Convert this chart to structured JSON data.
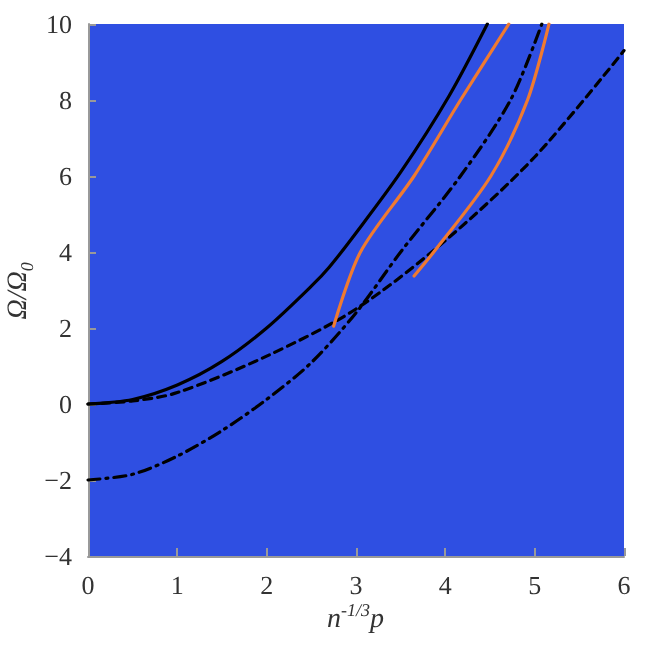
{
  "chart_data": {
    "type": "line",
    "xlabel": "n$^{-1/3}$p",
    "ylabel": "Ω/Ω$_{0}$",
    "xlim": [
      0,
      6
    ],
    "xticks": [
      0,
      1,
      2,
      3,
      4,
      5,
      6
    ],
    "ylim": [
      -4,
      10
    ],
    "yticks": [
      -4,
      -2,
      0,
      2,
      4,
      6,
      8,
      10
    ],
    "grid": false,
    "marker": "none",
    "series": [
      {
        "color": "#000000",
        "line_style": "solid",
        "x": [
          0,
          0.5,
          1,
          1.5,
          2,
          2.5,
          2.7,
          3,
          3.5,
          4.04,
          4.47
        ],
        "values": [
          0,
          0.12,
          0.5,
          1.12,
          2,
          3.1,
          3.6,
          4.5,
          6.1,
          8.1,
          10
        ]
      },
      {
        "color": "#000000",
        "line_style": "dashed",
        "x": [
          0,
          0.5,
          1,
          2,
          3,
          4,
          5,
          6
        ],
        "values": [
          0,
          0.08,
          0.3,
          1.26,
          2.5,
          4.3,
          6.5,
          9.3
        ]
      },
      {
        "color": "#000000",
        "line_style": "dashdot",
        "x": [
          0,
          0.5,
          1,
          1.5,
          2,
          2.5,
          3,
          3.5,
          4.17,
          4.73,
          5.08
        ],
        "values": [
          -2,
          -1.85,
          -1.37,
          -0.7,
          0.12,
          1.09,
          2.4,
          4,
          6,
          8,
          10
        ]
      },
      {
        "color": "#f07a30",
        "line_style": "solid",
        "x": [
          2.75,
          3.05,
          3.65,
          4.17,
          4.71
        ],
        "values": [
          2.05,
          4,
          6,
          8,
          10
        ]
      },
      {
        "color": "#f07a30",
        "line_style": "solid",
        "x": [
          3.65,
          3.87,
          4.51,
          4.92,
          5.16
        ],
        "values": [
          3.37,
          4,
          6,
          8,
          10
        ]
      }
    ]
  }
}
